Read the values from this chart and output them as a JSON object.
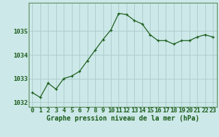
{
  "x": [
    0,
    1,
    2,
    3,
    4,
    5,
    6,
    7,
    8,
    9,
    10,
    11,
    12,
    13,
    14,
    15,
    16,
    17,
    18,
    19,
    20,
    21,
    22,
    23
  ],
  "y": [
    1032.4,
    1032.2,
    1032.8,
    1032.55,
    1033.0,
    1033.1,
    1033.3,
    1033.75,
    1034.2,
    1034.65,
    1035.05,
    1035.75,
    1035.7,
    1035.45,
    1035.3,
    1034.85,
    1034.6,
    1034.6,
    1034.45,
    1034.6,
    1034.6,
    1034.75,
    1034.85,
    1034.75
  ],
  "line_color": "#1a5c1a",
  "marker": "+",
  "marker_size": 3.5,
  "bg_color": "#cce8e8",
  "grid_color": "#aacaca",
  "xlabel": "Graphe pression niveau de la mer (hPa)",
  "xlabel_color": "#1a5c1a",
  "xlabel_fontsize": 7.0,
  "tick_color": "#1a5c1a",
  "tick_fontsize": 6.5,
  "ylim": [
    1031.8,
    1036.2
  ],
  "yticks": [
    1032,
    1033,
    1034,
    1035
  ],
  "xlim": [
    -0.5,
    23.5
  ],
  "xticks": [
    0,
    1,
    2,
    3,
    4,
    5,
    6,
    7,
    8,
    9,
    10,
    11,
    12,
    13,
    14,
    15,
    16,
    17,
    18,
    19,
    20,
    21,
    22,
    23
  ]
}
